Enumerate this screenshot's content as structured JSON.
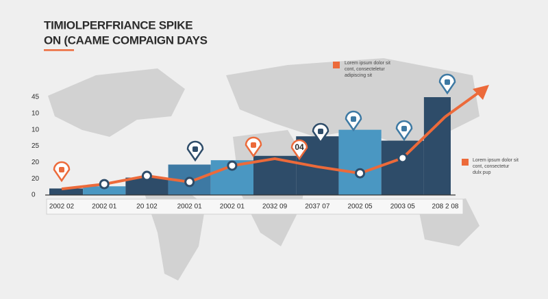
{
  "chart_data": {
    "type": "bar",
    "title": [
      "TIMIOLPERFRIANCE SPIKE",
      "ON (CAAME COMPAIGN DAYS"
    ],
    "categories": [
      "2002 02",
      "2002 01",
      "20 102",
      "2002 01",
      "2002 01",
      "2032 09",
      "2037 07",
      "2002 05",
      "2003 05",
      "208 2 08"
    ],
    "values": [
      3,
      4,
      8,
      14,
      16,
      18,
      27,
      30,
      25,
      45
    ],
    "colors": [
      "#2e4c69",
      "#4a97c2",
      "#2e4c69",
      "#3d79a3",
      "#4a97c2",
      "#2e4c69",
      "#2e4c69",
      "#4a97c2",
      "#2e4c69",
      "#2e4c69"
    ],
    "line_values": [
      2.8,
      5,
      8.8,
      6,
      13.5,
      16.7,
      13,
      10,
      17,
      36
    ],
    "line_color": "#ec6a3a",
    "ylim": [
      0,
      45
    ],
    "y_labels": [
      "45",
      "10",
      "10",
      "25",
      "20",
      "20",
      "0"
    ],
    "annotations": [
      [
        "Lorem ipsum dolor sit",
        "cont, consecteletur",
        "adipiscing sit"
      ],
      [
        "Lorem ipsum dolor sit",
        "cont, consectetur",
        "dulx pup"
      ]
    ],
    "badge": "04"
  }
}
